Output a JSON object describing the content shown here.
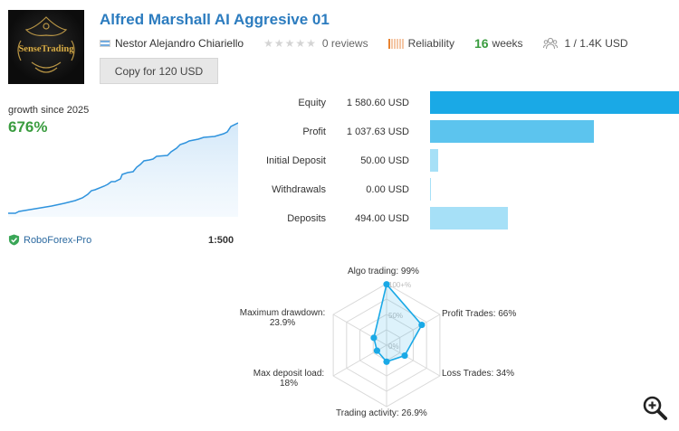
{
  "product": {
    "logo_text": "SenseTrading",
    "title": "Alfred Marshall AI Aggresive 01",
    "author": "Nestor Alejandro Chiariello",
    "reviews": "0 reviews",
    "reliability_label": "Reliability",
    "weeks_value": "16",
    "weeks_label": "weeks",
    "subscribers": "1 / 1.4K USD",
    "copy_button": "Copy for 120 USD"
  },
  "growth": {
    "label": "growth since 2025",
    "value": "676%",
    "broker": "RoboForex-Pro",
    "leverage": "1:500"
  },
  "stats": [
    {
      "label": "Equity",
      "value": "1 580.60 USD",
      "amount": 1580.6
    },
    {
      "label": "Profit",
      "value": "1 037.63 USD",
      "amount": 1037.63
    },
    {
      "label": "Initial Deposit",
      "value": "50.00 USD",
      "amount": 50.0
    },
    {
      "label": "Withdrawals",
      "value": "0.00 USD",
      "amount": 0.0
    },
    {
      "label": "Deposits",
      "value": "494.00 USD",
      "amount": 494.0
    }
  ],
  "radar": {
    "axes": [
      {
        "label": "Algo trading: 99%",
        "value": 99
      },
      {
        "label": "Profit Trades: 66%",
        "value": 66
      },
      {
        "label": "Loss Trades: 34%",
        "value": 34
      },
      {
        "label": "Trading activity: 26.9%",
        "value": 26.9
      },
      {
        "label": "Max deposit load:",
        "label2": "18%",
        "value": 18
      },
      {
        "label": "Maximum drawdown:",
        "label2": "23.9%",
        "value": 23.9
      }
    ],
    "scale_labels": [
      "100+%",
      "50%",
      "0%"
    ]
  },
  "colors": {
    "title": "#2c7cbf",
    "growth": "#3a9c3f",
    "equity_bar": "#1aa9e6",
    "profit_bar": "#5cc4ee",
    "deposit_bar": "#a6e0f7",
    "radar": "#1aa9e6"
  },
  "icons": {
    "rating": "star-icon",
    "reliability": "reliability-bars-icon",
    "subscribers": "subscribers-icon",
    "broker": "shield-check-icon",
    "zoom": "zoom-in-icon",
    "flag": "argentina-flag-icon"
  }
}
